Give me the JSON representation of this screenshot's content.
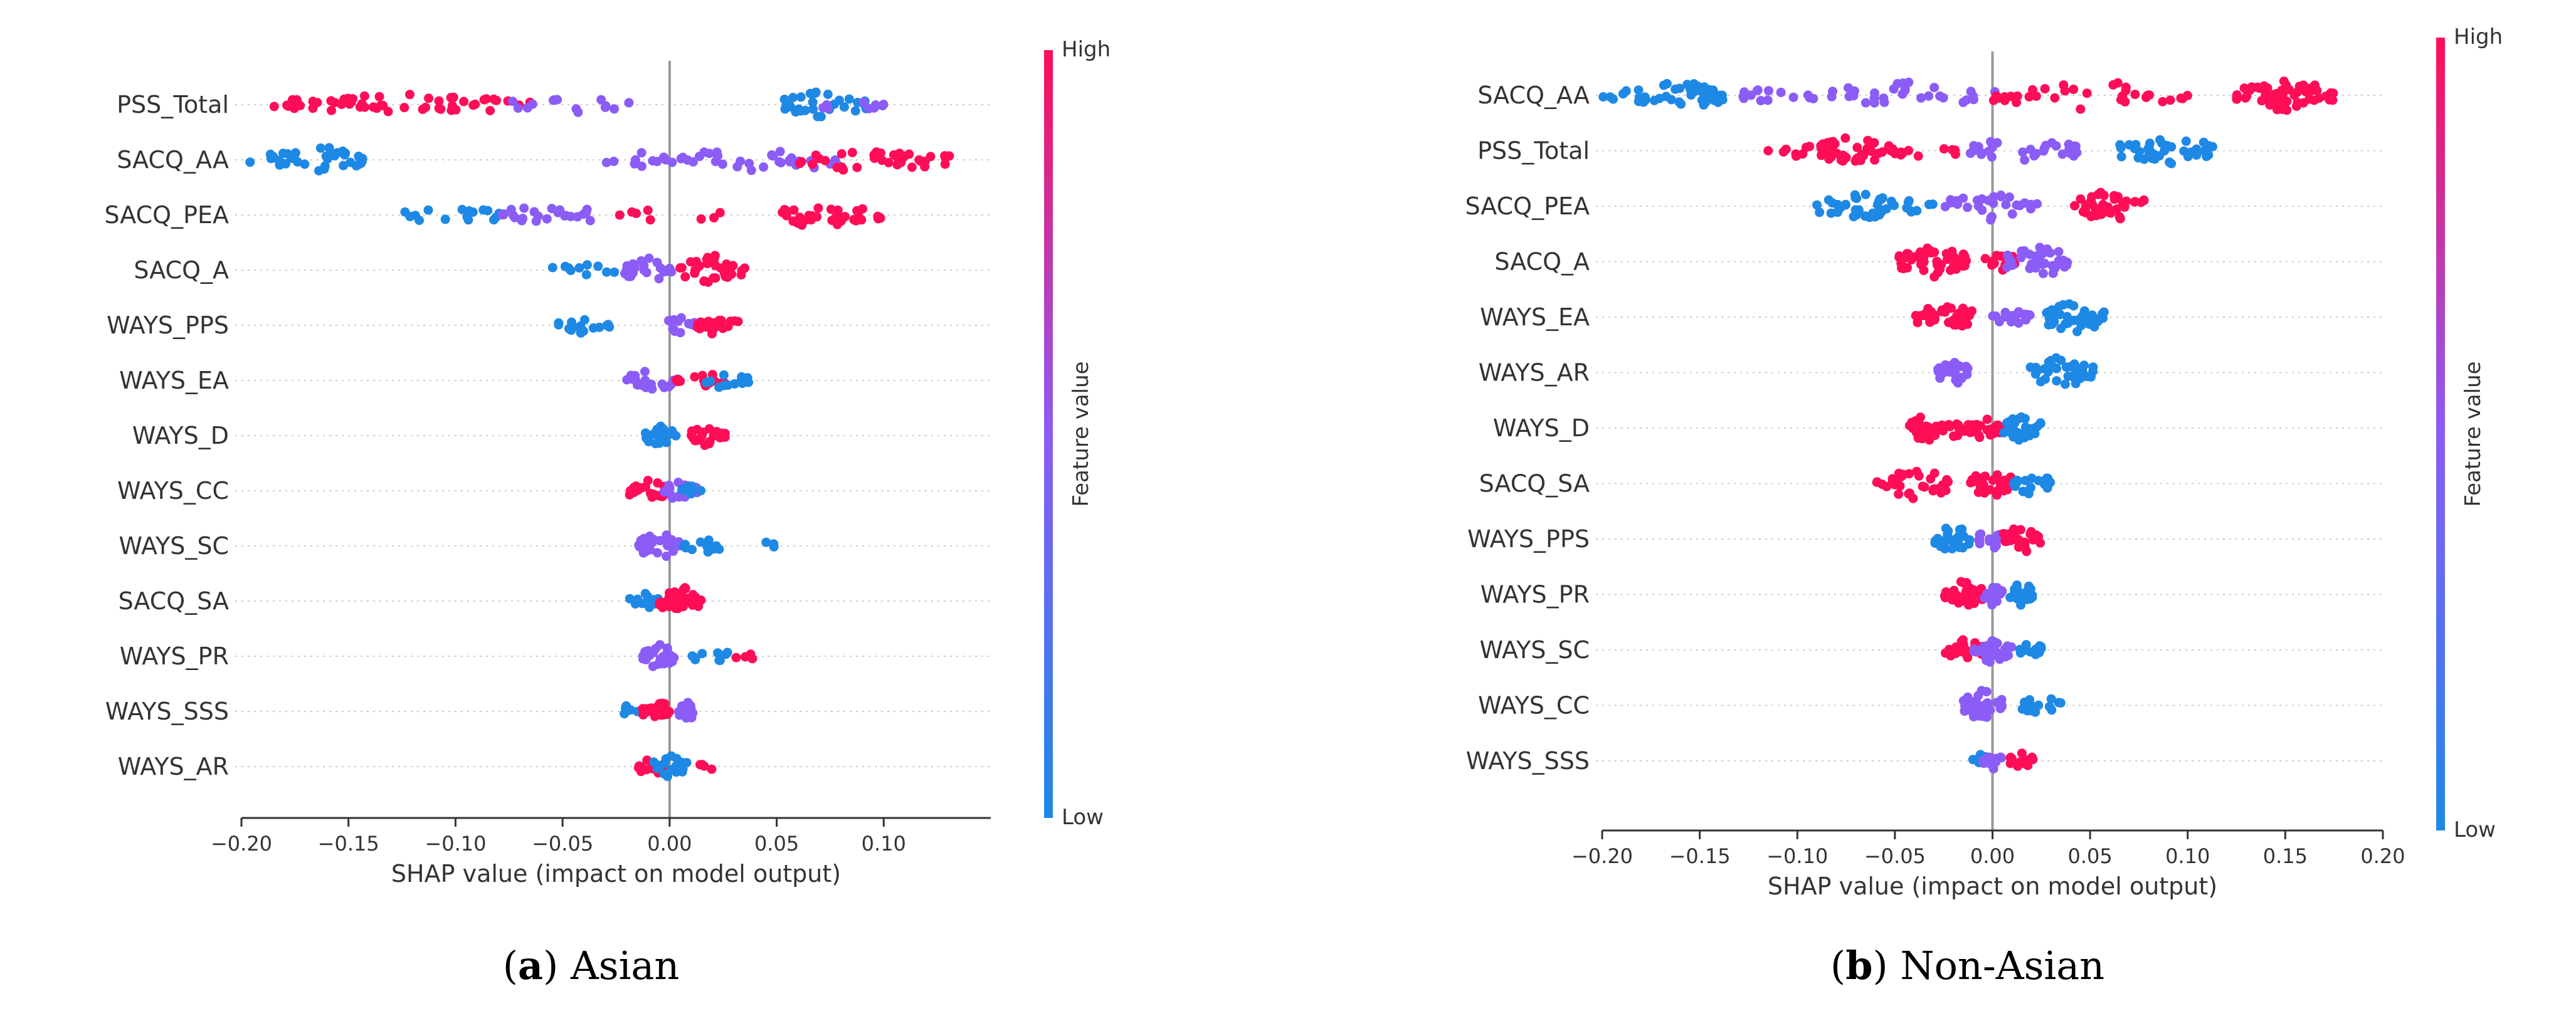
{
  "colors": {
    "low": "#1E88E5",
    "high": "#FF0D57",
    "mid": "#8B5CF6",
    "axis": "#333333",
    "zero_line": "#999999"
  },
  "chart_data": [
    {
      "type": "scatter",
      "subtype": "shap-beeswarm",
      "caption_letter": "a",
      "caption_rest": "Asian",
      "xlabel": "SHAP value (impact on model output)",
      "xlim": [
        -0.2,
        0.15
      ],
      "xticks": [
        -0.2,
        -0.15,
        -0.1,
        -0.05,
        0.0,
        0.05,
        0.1
      ],
      "xtick_labels": [
        "−0.20",
        "−0.15",
        "−0.10",
        "−0.05",
        "0.00",
        "0.05",
        "0.10"
      ],
      "colorbar": {
        "title": "Feature value",
        "high_label": "High",
        "low_label": "Low"
      },
      "features": [
        {
          "name": "PSS_Total",
          "clusters": [
            {
              "x": -0.165,
              "value": "high",
              "spread": 0.02,
              "n": 14
            },
            {
              "x": -0.125,
              "value": "high",
              "spread": 0.035,
              "n": 30
            },
            {
              "x": -0.085,
              "value": "high",
              "spread": 0.02,
              "n": 10
            },
            {
              "x": -0.045,
              "value": "mid",
              "spread": 0.03,
              "n": 14
            },
            {
              "x": 0.072,
              "value": "low",
              "spread": 0.02,
              "n": 30
            },
            {
              "x": 0.085,
              "value": "mid",
              "spread": 0.015,
              "n": 10
            }
          ]
        },
        {
          "name": "SACQ_AA",
          "clusters": [
            {
              "x": -0.185,
              "value": "low",
              "spread": 0.012,
              "n": 8
            },
            {
              "x": -0.163,
              "value": "low",
              "spread": 0.02,
              "n": 32
            },
            {
              "x": -0.01,
              "value": "mid",
              "spread": 0.02,
              "n": 12
            },
            {
              "x": 0.04,
              "value": "mid",
              "spread": 0.04,
              "n": 30
            },
            {
              "x": 0.085,
              "value": "high",
              "spread": 0.025,
              "n": 22
            },
            {
              "x": 0.115,
              "value": "high",
              "spread": 0.02,
              "n": 16
            }
          ]
        },
        {
          "name": "SACQ_PEA",
          "clusters": [
            {
              "x": -0.1,
              "value": "low",
              "spread": 0.025,
              "n": 16
            },
            {
              "x": -0.055,
              "value": "mid",
              "spread": 0.025,
              "n": 24
            },
            {
              "x": 0.0,
              "value": "high",
              "spread": 0.025,
              "n": 8
            },
            {
              "x": 0.072,
              "value": "high",
              "spread": 0.02,
              "n": 34
            },
            {
              "x": 0.095,
              "value": "high",
              "spread": 0.008,
              "n": 4
            }
          ]
        },
        {
          "name": "SACQ_A",
          "clusters": [
            {
              "x": -0.04,
              "value": "low",
              "spread": 0.015,
              "n": 10
            },
            {
              "x": -0.01,
              "value": "mid",
              "spread": 0.012,
              "n": 26
            },
            {
              "x": 0.02,
              "value": "high",
              "spread": 0.016,
              "n": 34
            }
          ]
        },
        {
          "name": "WAYS_PPS",
          "clusters": [
            {
              "x": -0.04,
              "value": "low",
              "spread": 0.012,
              "n": 16
            },
            {
              "x": 0.005,
              "value": "mid",
              "spread": 0.008,
              "n": 14
            },
            {
              "x": 0.022,
              "value": "high",
              "spread": 0.01,
              "n": 20
            }
          ]
        },
        {
          "name": "WAYS_EA",
          "clusters": [
            {
              "x": -0.008,
              "value": "mid",
              "spread": 0.012,
              "n": 22
            },
            {
              "x": 0.015,
              "value": "high",
              "spread": 0.012,
              "n": 14
            },
            {
              "x": 0.025,
              "value": "low",
              "spread": 0.012,
              "n": 14
            }
          ]
        },
        {
          "name": "WAYS_D",
          "clusters": [
            {
              "x": -0.005,
              "value": "low",
              "spread": 0.008,
              "n": 20
            },
            {
              "x": 0.018,
              "value": "high",
              "spread": 0.008,
              "n": 22
            }
          ]
        },
        {
          "name": "WAYS_CC",
          "clusters": [
            {
              "x": -0.01,
              "value": "high",
              "spread": 0.01,
              "n": 22
            },
            {
              "x": 0.005,
              "value": "mid",
              "spread": 0.008,
              "n": 20
            },
            {
              "x": 0.01,
              "value": "low",
              "spread": 0.005,
              "n": 8
            }
          ]
        },
        {
          "name": "WAYS_SC",
          "clusters": [
            {
              "x": -0.005,
              "value": "mid",
              "spread": 0.01,
              "n": 30
            },
            {
              "x": 0.015,
              "value": "low",
              "spread": 0.01,
              "n": 12
            },
            {
              "x": 0.046,
              "value": "low",
              "spread": 0.003,
              "n": 3
            }
          ]
        },
        {
          "name": "SACQ_SA",
          "clusters": [
            {
              "x": -0.012,
              "value": "low",
              "spread": 0.007,
              "n": 14
            },
            {
              "x": 0.005,
              "value": "high",
              "spread": 0.01,
              "n": 34
            }
          ]
        },
        {
          "name": "WAYS_PR",
          "clusters": [
            {
              "x": -0.005,
              "value": "mid",
              "spread": 0.008,
              "n": 28
            },
            {
              "x": 0.02,
              "value": "low",
              "spread": 0.01,
              "n": 10
            },
            {
              "x": 0.036,
              "value": "high",
              "spread": 0.005,
              "n": 4
            }
          ]
        },
        {
          "name": "WAYS_SSS",
          "clusters": [
            {
              "x": -0.02,
              "value": "low",
              "spread": 0.006,
              "n": 6
            },
            {
              "x": -0.005,
              "value": "high",
              "spread": 0.008,
              "n": 18
            },
            {
              "x": 0.008,
              "value": "mid",
              "spread": 0.004,
              "n": 20
            }
          ]
        },
        {
          "name": "WAYS_AR",
          "clusters": [
            {
              "x": -0.008,
              "value": "high",
              "spread": 0.008,
              "n": 14
            },
            {
              "x": 0.0,
              "value": "low",
              "spread": 0.008,
              "n": 22
            },
            {
              "x": 0.018,
              "value": "high",
              "spread": 0.004,
              "n": 4
            }
          ]
        }
      ]
    },
    {
      "type": "scatter",
      "subtype": "shap-beeswarm",
      "caption_letter": "b",
      "caption_rest": "Non-Asian",
      "xlabel": "SHAP value (impact on model output)",
      "xlim": [
        -0.2,
        0.2
      ],
      "xticks": [
        -0.2,
        -0.15,
        -0.1,
        -0.05,
        0.0,
        0.05,
        0.1,
        0.15,
        0.2
      ],
      "xtick_labels": [
        "−0.20",
        "−0.15",
        "−0.10",
        "−0.05",
        "0.00",
        "0.05",
        "0.10",
        "0.15",
        "0.20"
      ],
      "colorbar": {
        "title": "Feature value",
        "high_label": "High",
        "low_label": "Low"
      },
      "features": [
        {
          "name": "SACQ_AA",
          "clusters": [
            {
              "x": -0.19,
              "value": "low",
              "spread": 0.01,
              "n": 5
            },
            {
              "x": -0.16,
              "value": "low",
              "spread": 0.022,
              "n": 44
            },
            {
              "x": -0.11,
              "value": "mid",
              "spread": 0.02,
              "n": 14
            },
            {
              "x": -0.04,
              "value": "mid",
              "spread": 0.045,
              "n": 30
            },
            {
              "x": 0.05,
              "value": "high",
              "spread": 0.05,
              "n": 34
            },
            {
              "x": 0.15,
              "value": "high",
              "spread": 0.025,
              "n": 56
            }
          ]
        },
        {
          "name": "PSS_Total",
          "clusters": [
            {
              "x": -0.1,
              "value": "high",
              "spread": 0.015,
              "n": 10
            },
            {
              "x": -0.07,
              "value": "high",
              "spread": 0.018,
              "n": 44
            },
            {
              "x": -0.035,
              "value": "high",
              "spread": 0.02,
              "n": 14
            },
            {
              "x": 0.015,
              "value": "mid",
              "spread": 0.03,
              "n": 30
            },
            {
              "x": 0.09,
              "value": "low",
              "spread": 0.025,
              "n": 38
            }
          ]
        },
        {
          "name": "SACQ_PEA",
          "clusters": [
            {
              "x": -0.07,
              "value": "low",
              "spread": 0.02,
              "n": 36
            },
            {
              "x": -0.04,
              "value": "low",
              "spread": 0.012,
              "n": 8
            },
            {
              "x": 0.0,
              "value": "mid",
              "spread": 0.025,
              "n": 30
            },
            {
              "x": 0.06,
              "value": "high",
              "spread": 0.018,
              "n": 40
            }
          ]
        },
        {
          "name": "SACQ_A",
          "clusters": [
            {
              "x": -0.03,
              "value": "high",
              "spread": 0.018,
              "n": 52
            },
            {
              "x": 0.005,
              "value": "high",
              "spread": 0.01,
              "n": 14
            },
            {
              "x": 0.025,
              "value": "mid",
              "spread": 0.018,
              "n": 38
            }
          ]
        },
        {
          "name": "WAYS_EA",
          "clusters": [
            {
              "x": -0.025,
              "value": "high",
              "spread": 0.015,
              "n": 40
            },
            {
              "x": 0.01,
              "value": "mid",
              "spread": 0.01,
              "n": 16
            },
            {
              "x": 0.042,
              "value": "low",
              "spread": 0.016,
              "n": 36
            }
          ]
        },
        {
          "name": "WAYS_AR",
          "clusters": [
            {
              "x": -0.02,
              "value": "mid",
              "spread": 0.008,
              "n": 26
            },
            {
              "x": 0.035,
              "value": "low",
              "spread": 0.018,
              "n": 36
            }
          ]
        },
        {
          "name": "WAYS_D",
          "clusters": [
            {
              "x": -0.03,
              "value": "high",
              "spread": 0.015,
              "n": 34
            },
            {
              "x": -0.005,
              "value": "high",
              "spread": 0.01,
              "n": 22
            },
            {
              "x": 0.015,
              "value": "low",
              "spread": 0.01,
              "n": 30
            }
          ]
        },
        {
          "name": "SACQ_SA",
          "clusters": [
            {
              "x": -0.04,
              "value": "high",
              "spread": 0.02,
              "n": 36
            },
            {
              "x": 0.0,
              "value": "high",
              "spread": 0.012,
              "n": 30
            },
            {
              "x": 0.02,
              "value": "low",
              "spread": 0.01,
              "n": 22
            }
          ]
        },
        {
          "name": "WAYS_PPS",
          "clusters": [
            {
              "x": -0.02,
              "value": "low",
              "spread": 0.01,
              "n": 30
            },
            {
              "x": 0.0,
              "value": "mid",
              "spread": 0.008,
              "n": 20
            },
            {
              "x": 0.015,
              "value": "high",
              "spread": 0.01,
              "n": 32
            }
          ]
        },
        {
          "name": "WAYS_PR",
          "clusters": [
            {
              "x": -0.015,
              "value": "high",
              "spread": 0.01,
              "n": 30
            },
            {
              "x": 0.0,
              "value": "mid",
              "spread": 0.006,
              "n": 20
            },
            {
              "x": 0.015,
              "value": "low",
              "spread": 0.006,
              "n": 30
            }
          ]
        },
        {
          "name": "WAYS_SC",
          "clusters": [
            {
              "x": -0.015,
              "value": "high",
              "spread": 0.01,
              "n": 24
            },
            {
              "x": 0.0,
              "value": "mid",
              "spread": 0.01,
              "n": 30
            },
            {
              "x": 0.02,
              "value": "low",
              "spread": 0.006,
              "n": 14
            }
          ]
        },
        {
          "name": "WAYS_CC",
          "clusters": [
            {
              "x": -0.005,
              "value": "mid",
              "spread": 0.01,
              "n": 36
            },
            {
              "x": 0.025,
              "value": "low",
              "spread": 0.01,
              "n": 18
            }
          ]
        },
        {
          "name": "WAYS_SSS",
          "clusters": [
            {
              "x": -0.005,
              "value": "low",
              "spread": 0.006,
              "n": 16
            },
            {
              "x": 0.0,
              "value": "mid",
              "spread": 0.005,
              "n": 14
            },
            {
              "x": 0.015,
              "value": "high",
              "spread": 0.006,
              "n": 16
            }
          ]
        }
      ]
    }
  ]
}
